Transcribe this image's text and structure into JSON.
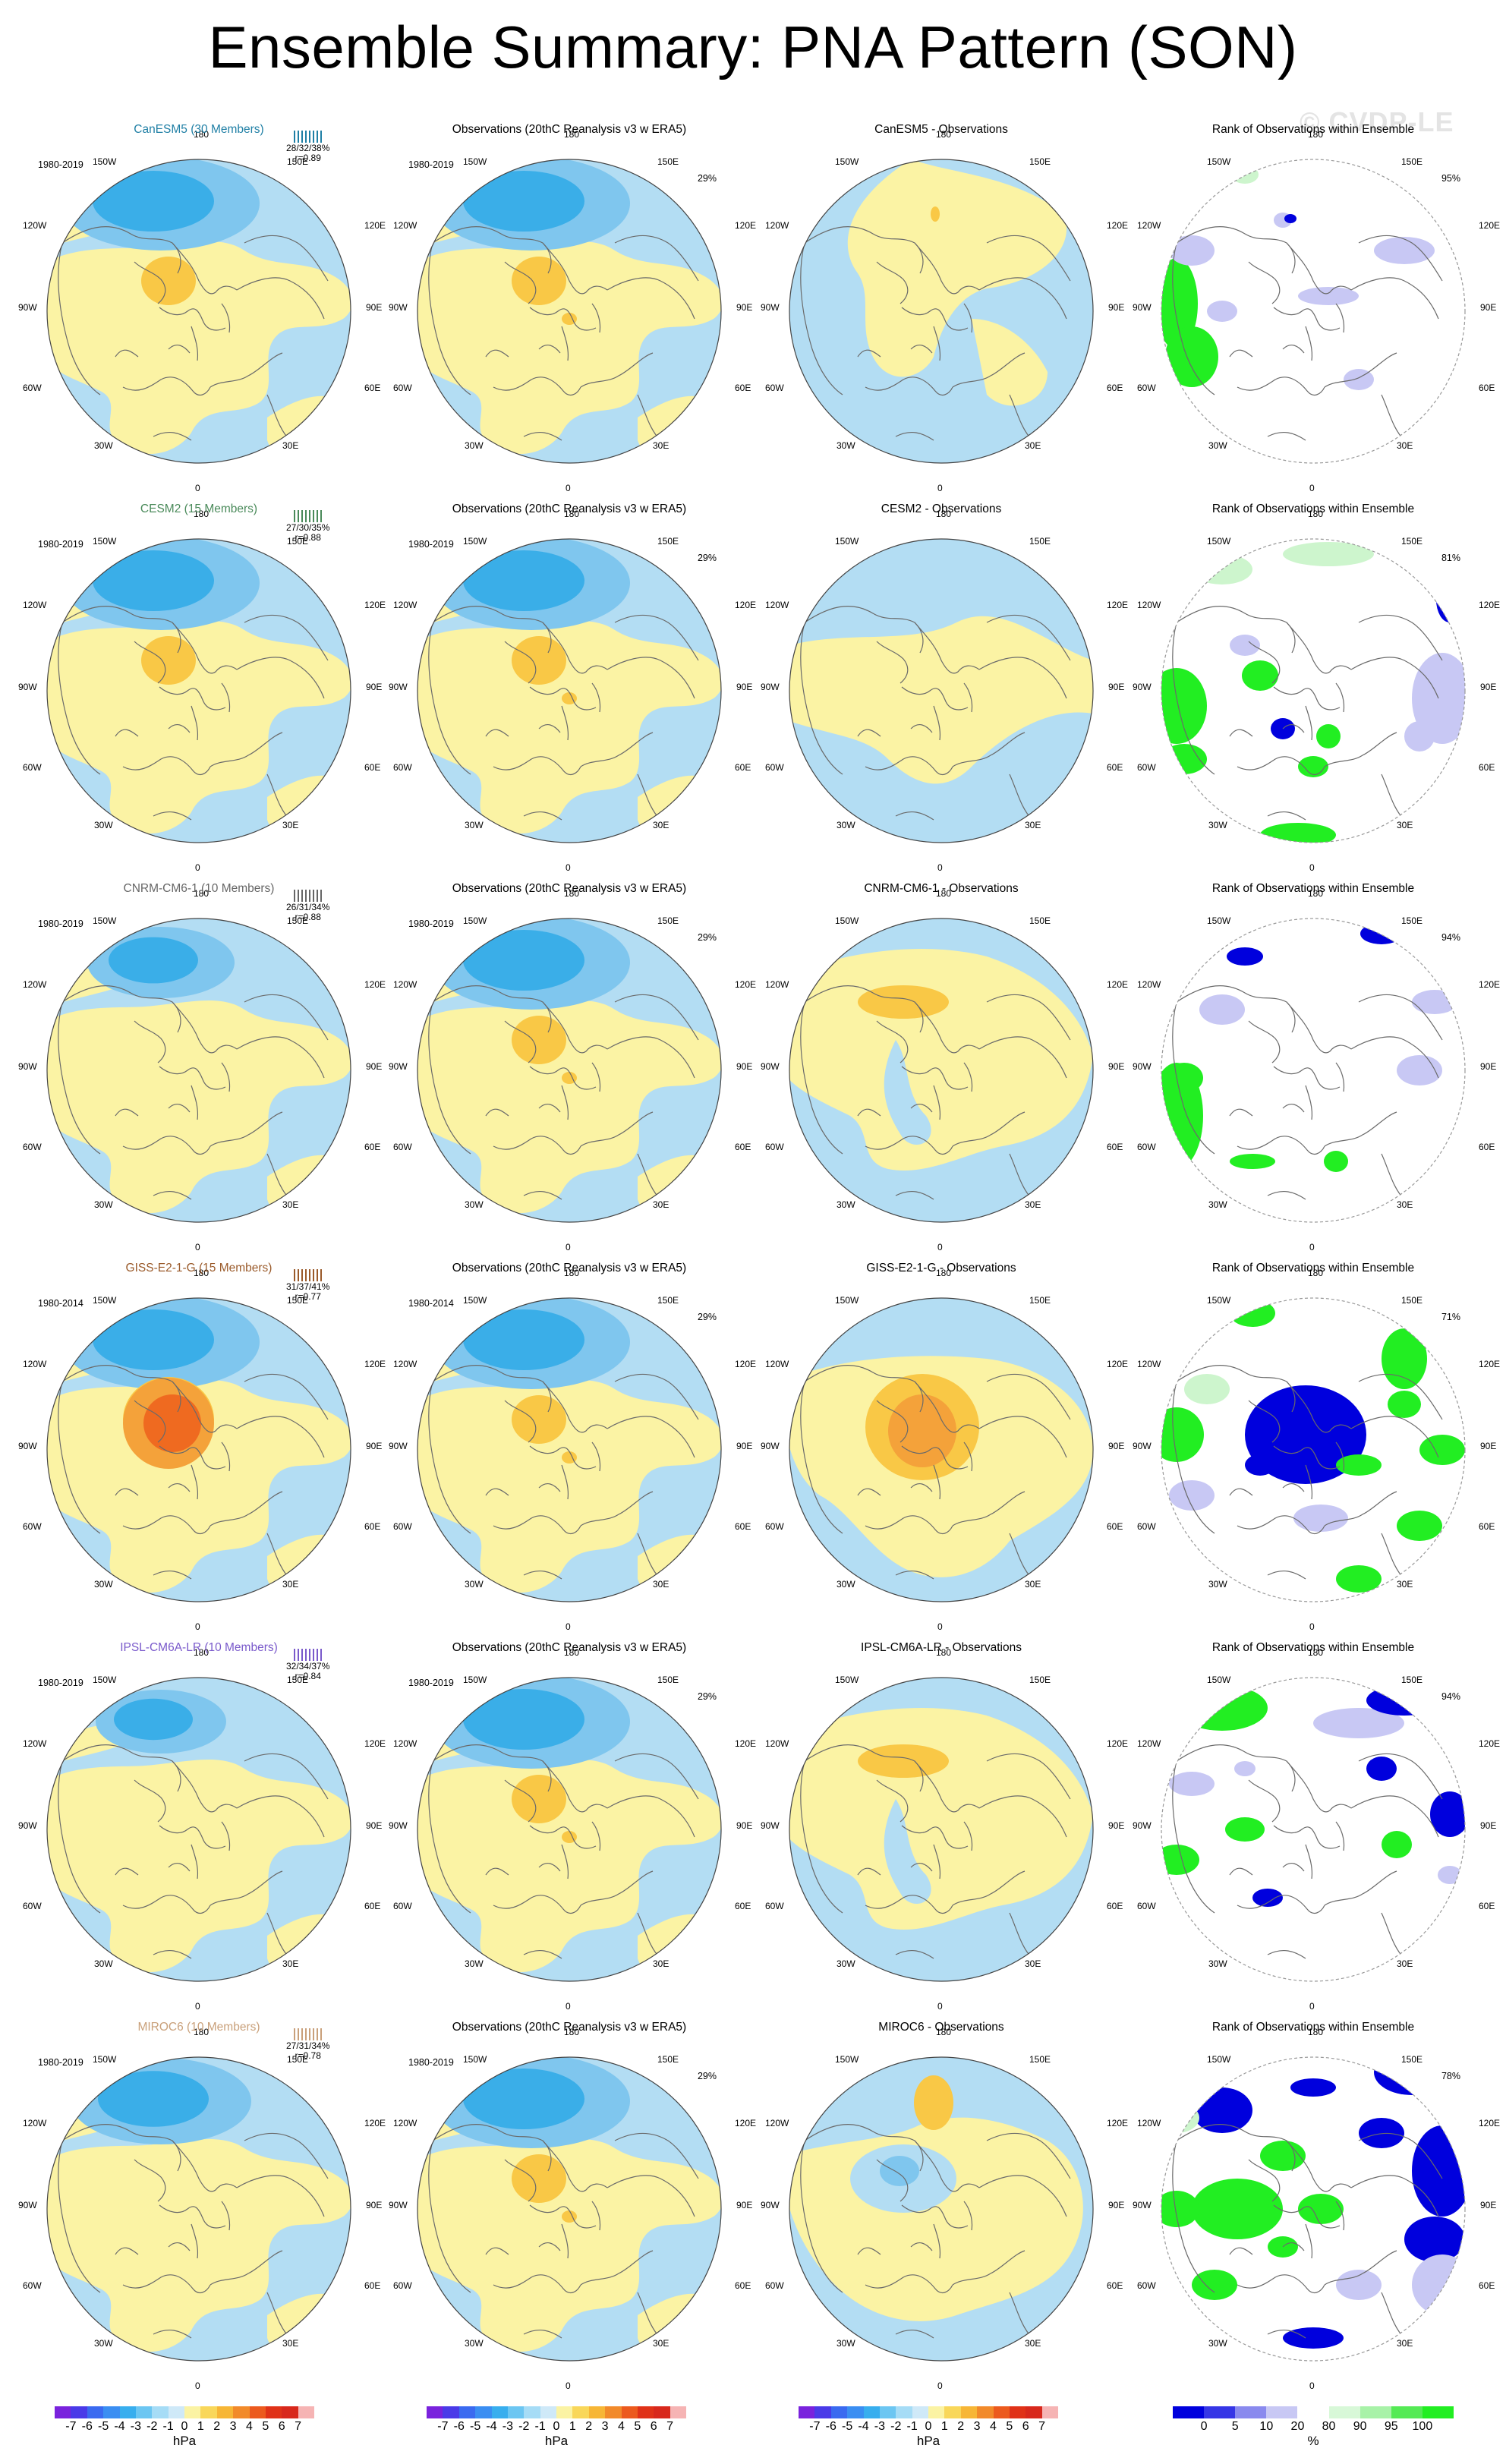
{
  "title": "Ensemble Summary: PNA Pattern (SON)",
  "watermark": "© CVDP-LE",
  "colors": {
    "ocean_blue": "#b3ddf3",
    "blue2": "#7fc6ee",
    "blue3": "#3aaee8",
    "yellow": "#fbf3a4",
    "orange1": "#f9c846",
    "orange2": "#f4a23a",
    "orange3": "#ef6a20",
    "rank_green": "#22ee22",
    "rank_blue": "#0000dd",
    "rank_lightblue": "#c8c8f4",
    "rank_lightgreen": "#cdf5cd"
  },
  "obs_title": "Observations (20thC Reanalysis v3 w ERA5)",
  "rank_title": "Rank of Observations within Ensemble",
  "lon_labels": {
    "top": "180",
    "bottom": "0",
    "ul": "150W",
    "ur": "150E",
    "ml": "120W",
    "mr": "120E",
    "l": "90W",
    "r": "90E",
    "ll": "60W",
    "lr": "60E",
    "bl": "30W",
    "br": "30E"
  },
  "rows": [
    {
      "model_title": "CanESM5 (30 Members)",
      "model_color": "#1f7fa5",
      "period": "1980-2019",
      "stats_pct": "28/32/38%",
      "stats_r": "r=0.89",
      "obs_period": "1980-2019",
      "obs_pct": "29%",
      "diff_title": "CanESM5 - Observations",
      "rank_pct": "95%",
      "model_strength": 1.0,
      "model_warm": 1,
      "diff_mode": "weak_arctic",
      "rank_mode": 0
    },
    {
      "model_title": "CESM2 (15 Members)",
      "model_color": "#4a8a5a",
      "period": "1980-2019",
      "stats_pct": "27/30/35%",
      "stats_r": "r=0.88",
      "obs_period": "1980-2019",
      "obs_pct": "29%",
      "diff_title": "CESM2 - Observations",
      "rank_pct": "81%",
      "model_strength": 1.0,
      "model_warm": 1,
      "diff_mode": "flat",
      "rank_mode": 1
    },
    {
      "model_title": "CNRM-CM6-1 (10 Members)",
      "model_color": "#666666",
      "period": "1980-2019",
      "stats_pct": "26/31/34%",
      "stats_r": "r=0.88",
      "obs_period": "1980-2019",
      "obs_pct": "29%",
      "diff_title": "CNRM-CM6-1 - Observations",
      "rank_pct": "94%",
      "model_strength": 0.7,
      "model_warm": 0,
      "diff_mode": "orange_pacific",
      "rank_mode": 2
    },
    {
      "model_title": "GISS-E2-1-G (15 Members)",
      "model_color": "#9a5a2a",
      "period": "1980-2014",
      "stats_pct": "31/37/41%",
      "stats_r": "r=0.77",
      "obs_period": "1980-2014",
      "obs_pct": "29%",
      "diff_title": "GISS-E2-1-G - Observations",
      "rank_pct": "71%",
      "model_strength": 1.0,
      "model_warm": 3,
      "diff_mode": "warm_arctic",
      "rank_mode": 3
    },
    {
      "model_title": "IPSL-CM6A-LR (10 Members)",
      "model_color": "#7a5acb",
      "period": "1980-2019",
      "stats_pct": "32/34/37%",
      "stats_r": "r=0.84",
      "obs_period": "1980-2019",
      "obs_pct": "29%",
      "diff_title": "IPSL-CM6A-LR - Observations",
      "rank_pct": "94%",
      "model_strength": 0.6,
      "model_warm": 0,
      "diff_mode": "orange_pacific",
      "rank_mode": 4
    },
    {
      "model_title": "MIROC6 (10 Members)",
      "model_color": "#c9a07a",
      "period": "1980-2019",
      "stats_pct": "27/31/34%",
      "stats_r": "r=0.78",
      "obs_period": "1980-2019",
      "obs_pct": "29%",
      "diff_title": "MIROC6 - Observations",
      "rank_pct": "78%",
      "model_strength": 0.9,
      "model_warm": 0,
      "diff_mode": "blue_center",
      "rank_mode": 5
    }
  ],
  "colorbar_hpa": {
    "labels": [
      "-7",
      "-6",
      "-5",
      "-4",
      "-3",
      "-2",
      "-1",
      "0",
      "1",
      "2",
      "3",
      "4",
      "5",
      "6",
      "7"
    ],
    "colors": [
      "#7a22dd",
      "#4a3ae8",
      "#3a6af0",
      "#3a8ef2",
      "#38aeee",
      "#6cc6f2",
      "#a6dcf6",
      "#cfe9f8",
      "#fbf3a4",
      "#f9d75a",
      "#f7b636",
      "#f28a2a",
      "#ec5a1e",
      "#e03218",
      "#d8281c",
      "#f6b4b4"
    ],
    "unit": "hPa"
  },
  "colorbar_pct": {
    "labels": [
      "0",
      "5",
      "10",
      "20",
      "80",
      "90",
      "95",
      "100"
    ],
    "colors": [
      "#0000dd",
      "#3636e6",
      "#8a8aee",
      "#c8c8f4",
      "#ffffff",
      "#d8f8d8",
      "#a8f2a8",
      "#55ea55",
      "#22ee22"
    ],
    "unit": "%"
  }
}
